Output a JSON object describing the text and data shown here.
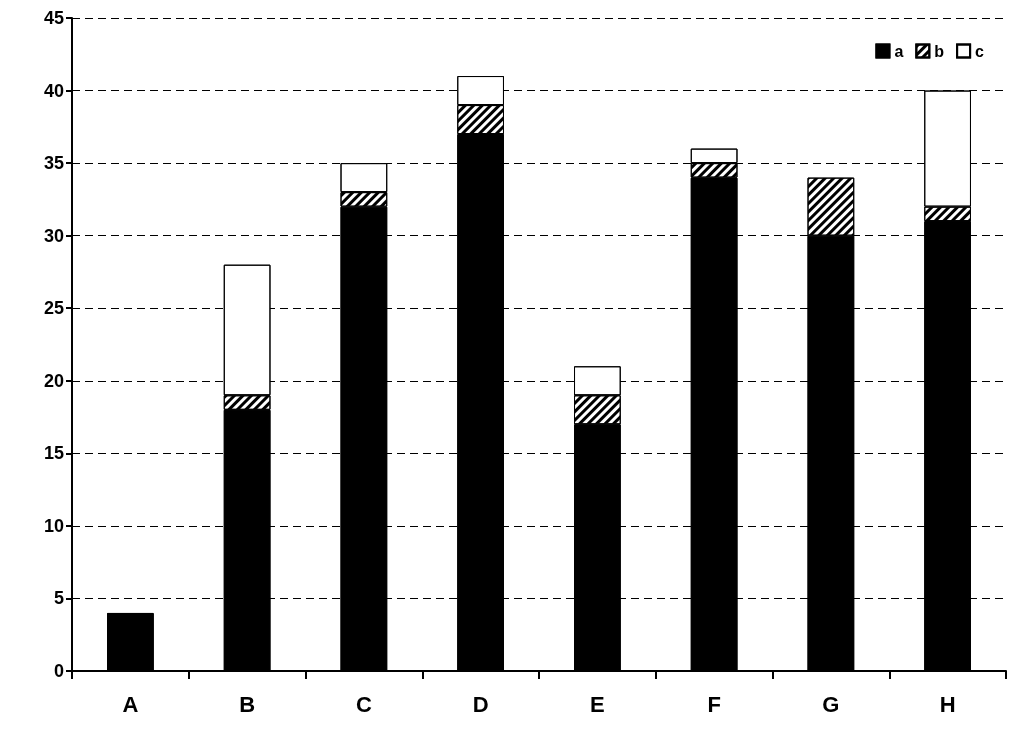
{
  "chart_data": {
    "type": "bar",
    "stacked": true,
    "categories": [
      "A",
      "B",
      "C",
      "D",
      "E",
      "F",
      "G",
      "H"
    ],
    "series": [
      {
        "name": "a",
        "color": "#000000",
        "values": [
          4,
          18,
          32,
          37,
          17,
          34,
          30,
          31
        ]
      },
      {
        "name": "b",
        "color": "#ffffff",
        "values": [
          0,
          1,
          1,
          2,
          2,
          1,
          4,
          1
        ]
      },
      {
        "name": "c",
        "color": "#ffffff",
        "values": [
          0,
          9,
          2,
          2,
          2,
          1,
          0,
          8
        ]
      }
    ],
    "ylim": [
      0,
      45
    ],
    "yticks": [
      0,
      5,
      10,
      15,
      20,
      25,
      30,
      35,
      40,
      45
    ],
    "grid": "y",
    "legend": "top right"
  }
}
